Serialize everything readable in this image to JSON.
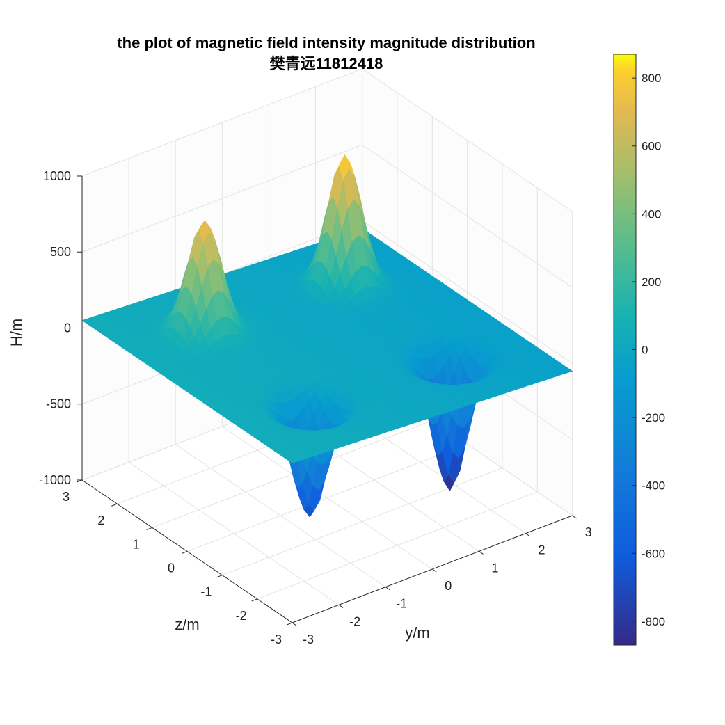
{
  "chart_data": {
    "type": "surface3d",
    "title": [
      "the plot of magnetic field intensity magnitude distribution",
      "樊青远11812418"
    ],
    "xlabel": "y/m",
    "ylabel": "z/m",
    "zlabel": "H/m",
    "xlim": [
      -3,
      3
    ],
    "ylim": [
      -3,
      3
    ],
    "zlim": [
      -1000,
      1000
    ],
    "x_ticks": [
      "-3",
      "-2",
      "-1",
      "0",
      "1",
      "2",
      "3"
    ],
    "y_ticks": [
      "-3",
      "-2",
      "-1",
      "0",
      "1",
      "2",
      "3"
    ],
    "z_ticks": [
      "-1000",
      "-500",
      "0",
      "500",
      "1000"
    ],
    "grid": true,
    "colormap": "parula",
    "colorbar": {
      "location": "right",
      "range": [
        -870,
        870
      ],
      "ticks": [
        "800",
        "600",
        "400",
        "200",
        "0",
        "-200",
        "-400",
        "-600",
        "-800"
      ]
    },
    "surface": {
      "baseline_tilt": {
        "at_y_min": 50,
        "at_y_max": -50
      },
      "peaks": [
        {
          "y": 1.5,
          "z": 1.5,
          "value": 870,
          "width": 0.3,
          "sign": "positive"
        },
        {
          "y": -1.5,
          "z": 1.5,
          "value": 740,
          "width": 0.3,
          "sign": "positive"
        },
        {
          "y": 1.5,
          "z": -1.5,
          "value": -870,
          "width": 0.3,
          "sign": "negative"
        },
        {
          "y": -1.5,
          "z": -1.5,
          "value": -740,
          "width": 0.3,
          "sign": "negative"
        }
      ]
    }
  }
}
